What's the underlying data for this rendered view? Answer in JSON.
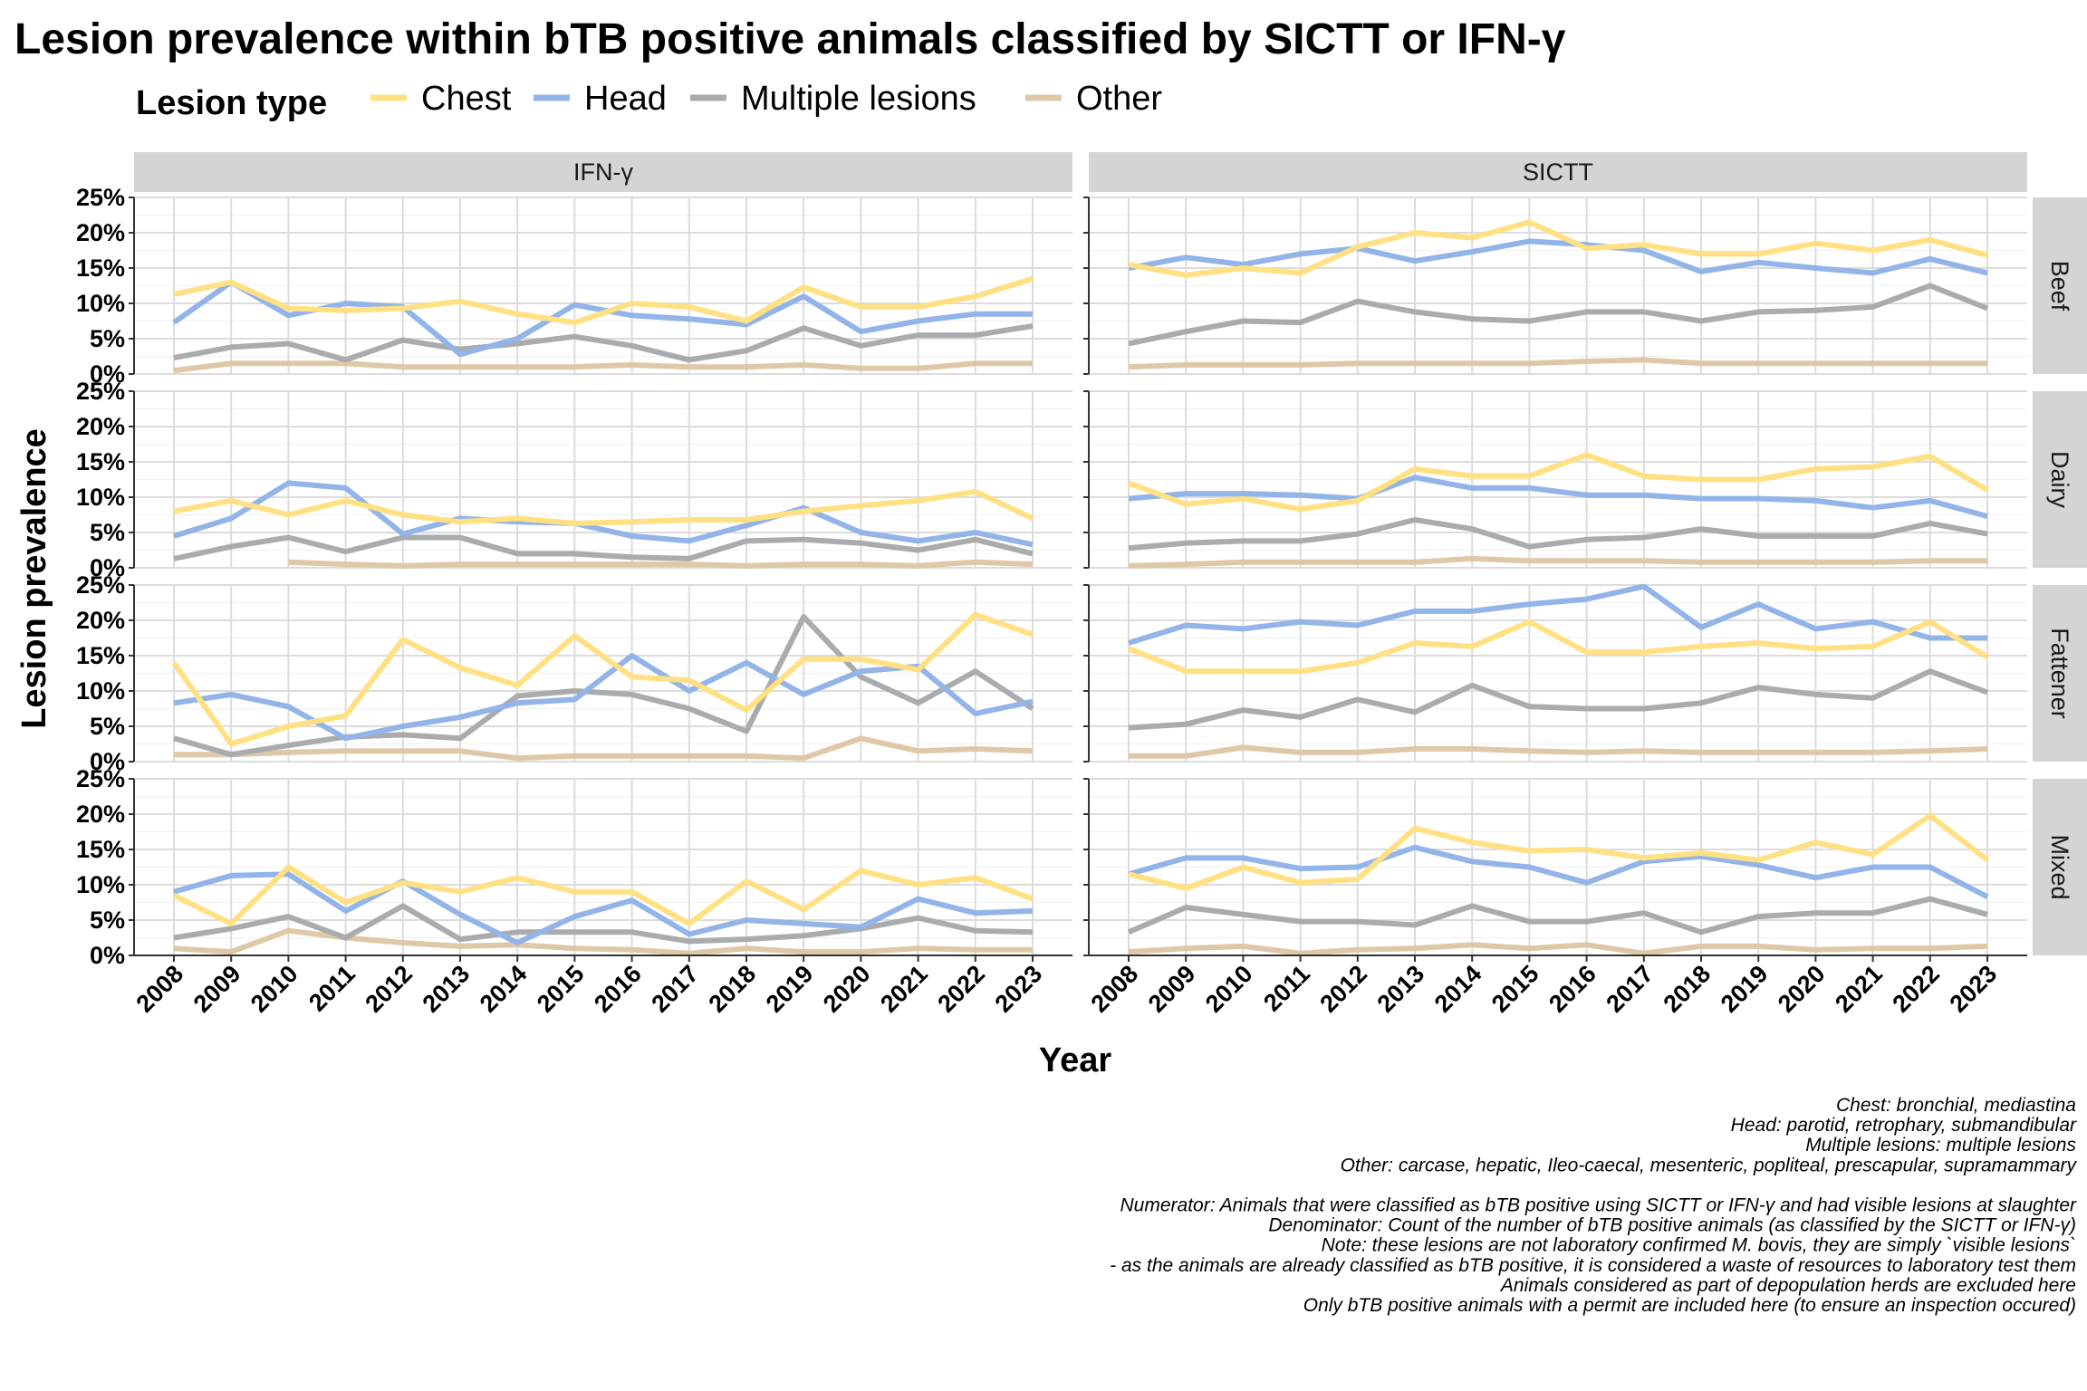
{
  "chart_data": {
    "type": "line",
    "title": "Lesion prevalence within bTB positive animals classified by SICTT or IFN-γ",
    "xlabel": "Year",
    "ylabel": "Lesion prevalence",
    "ylim": [
      0,
      25
    ],
    "y_ticks": [
      "0%",
      "5%",
      "10%",
      "15%",
      "20%",
      "25%"
    ],
    "y_tick_values": [
      0,
      5,
      10,
      15,
      20,
      25
    ],
    "x": [
      "2008",
      "2009",
      "2010",
      "2011",
      "2012",
      "2013",
      "2014",
      "2015",
      "2016",
      "2017",
      "2018",
      "2019",
      "2020",
      "2021",
      "2022",
      "2023"
    ],
    "grid": true,
    "legend": {
      "title": "Lesion type",
      "position": "top",
      "entries": [
        {
          "name": "Chest",
          "color": "#ffe082"
        },
        {
          "name": "Head",
          "color": "#92b4e8"
        },
        {
          "name": "Multiple lesions",
          "color": "#a9abad"
        },
        {
          "name": "Other",
          "color": "#dfc8a8"
        }
      ]
    },
    "facet_columns": [
      "IFN-γ",
      "SICTT"
    ],
    "facet_rows": [
      "Beef",
      "Dairy",
      "Fattener",
      "Mixed"
    ],
    "panels": [
      {
        "column": "IFN-γ",
        "row": "Beef",
        "series": [
          {
            "name": "Chest",
            "values": [
              11.3,
              13.0,
              9.3,
              9.0,
              9.3,
              10.3,
              8.5,
              7.3,
              10.0,
              9.5,
              7.5,
              12.3,
              9.5,
              9.5,
              11.0,
              13.5
            ]
          },
          {
            "name": "Head",
            "values": [
              7.3,
              13.0,
              8.3,
              10.0,
              9.5,
              2.8,
              5.0,
              9.8,
              8.3,
              7.8,
              7.0,
              11.0,
              6.0,
              7.5,
              8.5,
              8.5
            ]
          },
          {
            "name": "Multiple lesions",
            "values": [
              2.3,
              3.8,
              4.3,
              2.0,
              4.8,
              3.5,
              4.3,
              5.3,
              4.0,
              2.0,
              3.3,
              6.5,
              4.0,
              5.5,
              5.5,
              6.8
            ]
          },
          {
            "name": "Other",
            "values": [
              0.5,
              1.5,
              1.5,
              1.5,
              1.0,
              1.0,
              1.0,
              1.0,
              1.3,
              1.0,
              1.0,
              1.3,
              0.8,
              0.8,
              1.5,
              1.5
            ]
          }
        ]
      },
      {
        "column": "SICTT",
        "row": "Beef",
        "series": [
          {
            "name": "Chest",
            "values": [
              15.5,
              14.0,
              15.0,
              14.3,
              18.0,
              20.0,
              19.3,
              21.5,
              17.8,
              18.3,
              17.0,
              17.0,
              18.5,
              17.5,
              19.0,
              16.8
            ]
          },
          {
            "name": "Head",
            "values": [
              15.0,
              16.5,
              15.5,
              17.0,
              17.8,
              16.0,
              17.3,
              18.8,
              18.3,
              17.5,
              14.5,
              15.8,
              15.0,
              14.3,
              16.3,
              14.3
            ]
          },
          {
            "name": "Multiple lesions",
            "values": [
              4.3,
              6.0,
              7.5,
              7.3,
              10.3,
              8.8,
              7.8,
              7.5,
              8.8,
              8.8,
              7.5,
              8.8,
              9.0,
              9.5,
              12.5,
              9.3
            ]
          },
          {
            "name": "Other",
            "values": [
              1.0,
              1.3,
              1.3,
              1.3,
              1.5,
              1.5,
              1.5,
              1.5,
              1.8,
              2.0,
              1.5,
              1.5,
              1.5,
              1.5,
              1.5,
              1.5
            ]
          }
        ]
      },
      {
        "column": "IFN-γ",
        "row": "Dairy",
        "series": [
          {
            "name": "Chest",
            "values": [
              8.0,
              9.5,
              7.5,
              9.5,
              7.5,
              6.5,
              7.0,
              6.3,
              6.5,
              6.8,
              6.8,
              8.0,
              8.8,
              9.5,
              10.8,
              7.0
            ]
          },
          {
            "name": "Head",
            "values": [
              4.5,
              7.0,
              12.0,
              11.3,
              4.8,
              7.0,
              6.5,
              6.3,
              4.5,
              3.8,
              6.0,
              8.5,
              5.0,
              3.8,
              5.0,
              3.3
            ]
          },
          {
            "name": "Multiple lesions",
            "values": [
              1.3,
              3.0,
              4.3,
              2.3,
              4.3,
              4.3,
              2.0,
              2.0,
              1.5,
              1.3,
              3.8,
              4.0,
              3.5,
              2.5,
              4.0,
              2.0
            ]
          },
          {
            "name": "Other",
            "values": [
              null,
              null,
              0.8,
              0.5,
              0.3,
              0.5,
              0.5,
              0.5,
              0.5,
              0.5,
              0.3,
              0.5,
              0.5,
              0.3,
              0.8,
              0.5
            ]
          }
        ]
      },
      {
        "column": "SICTT",
        "row": "Dairy",
        "series": [
          {
            "name": "Chest",
            "values": [
              12.0,
              9.0,
              9.8,
              8.3,
              9.5,
              14.0,
              13.0,
              13.0,
              16.0,
              13.0,
              12.5,
              12.5,
              14.0,
              14.3,
              15.8,
              11.0
            ]
          },
          {
            "name": "Head",
            "values": [
              9.8,
              10.5,
              10.5,
              10.3,
              9.8,
              12.8,
              11.3,
              11.3,
              10.3,
              10.3,
              9.8,
              9.8,
              9.5,
              8.5,
              9.5,
              7.3
            ]
          },
          {
            "name": "Multiple lesions",
            "values": [
              2.8,
              3.5,
              3.8,
              3.8,
              4.8,
              6.8,
              5.5,
              3.0,
              4.0,
              4.3,
              5.5,
              4.5,
              4.5,
              4.5,
              6.3,
              4.8
            ]
          },
          {
            "name": "Other",
            "values": [
              0.3,
              0.5,
              0.8,
              0.8,
              0.8,
              0.8,
              1.3,
              1.0,
              1.0,
              1.0,
              0.8,
              0.8,
              0.8,
              0.8,
              1.0,
              1.0
            ]
          }
        ]
      },
      {
        "column": "IFN-γ",
        "row": "Fattener",
        "series": [
          {
            "name": "Chest",
            "values": [
              14.0,
              2.5,
              5.0,
              6.5,
              17.3,
              13.3,
              10.8,
              17.8,
              12.0,
              11.5,
              7.3,
              14.5,
              14.5,
              13.0,
              20.8,
              18.0
            ]
          },
          {
            "name": "Head",
            "values": [
              8.3,
              9.5,
              7.8,
              3.3,
              5.0,
              6.3,
              8.3,
              8.8,
              15.0,
              10.0,
              14.0,
              9.5,
              12.8,
              13.5,
              6.8,
              8.5
            ]
          },
          {
            "name": "Multiple lesions",
            "values": [
              3.3,
              1.0,
              2.3,
              3.5,
              3.8,
              3.3,
              9.3,
              10.0,
              9.5,
              7.5,
              4.3,
              20.5,
              12.0,
              8.3,
              12.8,
              7.5
            ]
          },
          {
            "name": "Other",
            "values": [
              1.0,
              1.0,
              1.3,
              1.5,
              1.5,
              1.5,
              0.5,
              0.8,
              0.8,
              0.8,
              0.8,
              0.5,
              3.3,
              1.5,
              1.8,
              1.5
            ]
          }
        ]
      },
      {
        "column": "SICTT",
        "row": "Fattener",
        "series": [
          {
            "name": "Chest",
            "values": [
              16.0,
              12.8,
              12.8,
              12.8,
              14.0,
              16.8,
              16.3,
              19.8,
              15.5,
              15.5,
              16.3,
              16.8,
              16.0,
              16.3,
              19.8,
              14.8
            ]
          },
          {
            "name": "Head",
            "values": [
              16.8,
              19.3,
              18.8,
              19.8,
              19.3,
              21.3,
              21.3,
              22.3,
              23.0,
              24.8,
              19.0,
              22.3,
              18.8,
              19.8,
              17.5,
              17.5
            ]
          },
          {
            "name": "Multiple lesions",
            "values": [
              4.8,
              5.3,
              7.3,
              6.3,
              8.8,
              7.0,
              10.8,
              7.8,
              7.5,
              7.5,
              8.3,
              10.5,
              9.5,
              9.0,
              12.8,
              9.8
            ]
          },
          {
            "name": "Other",
            "values": [
              0.8,
              0.8,
              2.0,
              1.3,
              1.3,
              1.8,
              1.8,
              1.5,
              1.3,
              1.5,
              1.3,
              1.3,
              1.3,
              1.3,
              1.5,
              1.8
            ]
          }
        ]
      },
      {
        "column": "IFN-γ",
        "row": "Mixed",
        "series": [
          {
            "name": "Chest",
            "values": [
              8.5,
              4.5,
              12.5,
              7.5,
              10.3,
              9.0,
              11.0,
              9.0,
              9.0,
              4.5,
              10.5,
              6.5,
              12.0,
              10.0,
              11.0,
              8.0
            ]
          },
          {
            "name": "Head",
            "values": [
              9.0,
              11.3,
              11.5,
              6.3,
              10.5,
              5.8,
              1.8,
              5.5,
              7.8,
              3.0,
              5.0,
              4.5,
              4.0,
              8.0,
              6.0,
              6.3
            ]
          },
          {
            "name": "Multiple lesions",
            "values": [
              2.5,
              3.8,
              5.5,
              2.5,
              7.0,
              2.3,
              3.3,
              3.3,
              3.3,
              2.0,
              2.3,
              2.8,
              3.8,
              5.3,
              3.5,
              3.3
            ]
          },
          {
            "name": "Other",
            "values": [
              1.0,
              0.5,
              3.5,
              2.5,
              1.8,
              1.3,
              1.5,
              1.0,
              0.8,
              0.3,
              1.0,
              0.5,
              0.5,
              1.0,
              0.8,
              0.8
            ]
          }
        ]
      },
      {
        "column": "SICTT",
        "row": "Mixed",
        "series": [
          {
            "name": "Chest",
            "values": [
              11.5,
              9.5,
              12.5,
              10.3,
              10.8,
              18.0,
              16.0,
              14.8,
              15.0,
              13.8,
              14.5,
              13.5,
              16.0,
              14.3,
              19.8,
              13.5
            ]
          },
          {
            "name": "Head",
            "values": [
              11.5,
              13.8,
              13.8,
              12.3,
              12.5,
              15.3,
              13.3,
              12.5,
              10.3,
              13.3,
              14.0,
              12.8,
              11.0,
              12.5,
              12.5,
              8.3
            ]
          },
          {
            "name": "Multiple lesions",
            "values": [
              3.3,
              6.8,
              5.8,
              4.8,
              4.8,
              4.3,
              7.0,
              4.8,
              4.8,
              6.0,
              3.3,
              5.5,
              6.0,
              6.0,
              8.0,
              5.8
            ]
          },
          {
            "name": "Other",
            "values": [
              0.5,
              1.0,
              1.3,
              0.3,
              0.8,
              1.0,
              1.5,
              1.0,
              1.5,
              0.3,
              1.3,
              1.3,
              0.8,
              1.0,
              1.0,
              1.3
            ]
          }
        ]
      }
    ],
    "caption_lines": [
      "Chest: bronchial, mediastina",
      "Head: parotid, retrophary, submandibular",
      "Multiple lesions: multiple lesions",
      "Other: carcase, hepatic, Ileo-caecal, mesenteric, popliteal, prescapular, supramammary",
      "",
      "Numerator: Animals that were classified as bTB positive using SICTT or IFN-γ and had visible lesions at slaughter",
      "Denominator: Count of the number of bTB positive animals (as classified by the SICTT or IFN-γ)",
      "Note: these lesions are not laboratory confirmed M. bovis, they are simply `visible lesions`",
      "- as the animals are already classified as bTB positive, it is considered a waste of resources to laboratory test them",
      "Animals considered as part of depopulation herds are excluded here",
      "Only bTB positive animals with a permit are included here (to ensure an inspection occured)"
    ]
  }
}
